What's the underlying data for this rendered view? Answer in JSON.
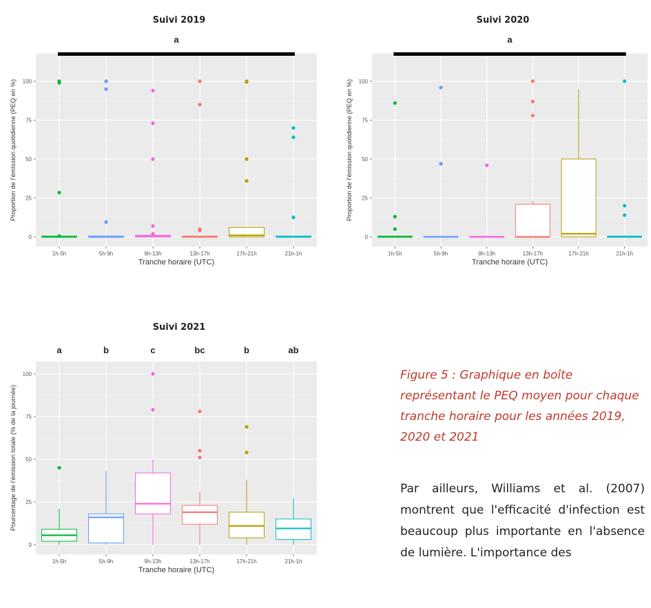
{
  "caption": "Figure 5 : Graphique en boîte représentant le PEQ moyen pour chaque tranche horaire pour les années 2019, 2020 et 2021",
  "body_text": "Par ailleurs, Williams et al. (2007) montrent que l'efficacité d'infection est beaucoup plus importante en l'absence de lumière. L'importance des",
  "chart_data": [
    {
      "type": "box",
      "title": "Suivi 2019",
      "xlabel": "Tranche horaire (UTC)",
      "ylabel": "Proportion de l'émission quotidienne (PEQ en %)",
      "ylim": [
        0,
        100
      ],
      "yticks": [
        0,
        25,
        50,
        75,
        100
      ],
      "categories": [
        "1h-5h",
        "5h-9h",
        "9h-13h",
        "13h-17h",
        "17h-21h",
        "21h-1h"
      ],
      "colors": [
        "#00ba38",
        "#619cff",
        "#f564e3",
        "#f8766d",
        "#b79f00",
        "#00bfc4"
      ],
      "significance": {
        "type": "bar",
        "label": "a"
      },
      "boxes": [
        {
          "min": 0,
          "q1": 0,
          "median": 0,
          "q3": 0.5,
          "max": 0.5,
          "outliers": [
            100,
            99,
            28.5,
            0.5
          ]
        },
        {
          "min": 0,
          "q1": 0,
          "median": 0,
          "q3": 0.5,
          "max": 0.5,
          "outliers": [
            100,
            95,
            9.5
          ]
        },
        {
          "min": 0,
          "q1": 0,
          "median": 0.5,
          "q3": 1,
          "max": 1,
          "outliers": [
            94,
            73,
            50,
            7,
            2
          ]
        },
        {
          "min": 0,
          "q1": 0,
          "median": 0,
          "q3": 0.5,
          "max": 0.5,
          "outliers": [
            100,
            85,
            5,
            4
          ]
        },
        {
          "min": 0,
          "q1": 0,
          "median": 1,
          "q3": 6,
          "max": 6,
          "outliers": [
            100,
            99.5,
            50,
            36
          ]
        },
        {
          "min": 0,
          "q1": 0,
          "median": 0,
          "q3": 0.5,
          "max": 0.5,
          "outliers": [
            70,
            64,
            12.5
          ]
        }
      ]
    },
    {
      "type": "box",
      "title": "Suivi 2020",
      "xlabel": "Tranche horaire (UTC)",
      "ylabel": "Proportion de l'émission quotidienne (PEQ en %)",
      "ylim": [
        0,
        100
      ],
      "yticks": [
        0,
        25,
        50,
        75,
        100
      ],
      "categories": [
        "1h-5h",
        "5h-9h",
        "9h-13h",
        "13h-17h",
        "17h-21h",
        "21h-1h"
      ],
      "colors": [
        "#00ba38",
        "#619cff",
        "#f564e3",
        "#f8766d",
        "#b79f00",
        "#00bfc4"
      ],
      "significance": {
        "type": "bar",
        "label": "a"
      },
      "boxes": [
        {
          "min": 0,
          "q1": 0,
          "median": 0,
          "q3": 0.5,
          "max": 0.5,
          "outliers": [
            86,
            13,
            5
          ]
        },
        {
          "min": 0,
          "q1": 0,
          "median": 0,
          "q3": 0.3,
          "max": 0.3,
          "outliers": [
            96,
            47
          ]
        },
        {
          "min": 0,
          "q1": 0,
          "median": 0,
          "q3": 0.3,
          "max": 0.3,
          "outliers": [
            46
          ]
        },
        {
          "min": 0,
          "q1": 0,
          "median": 0,
          "q3": 21,
          "max": 23,
          "outliers": [
            100,
            87,
            78
          ]
        },
        {
          "min": 0,
          "q1": 0,
          "median": 2,
          "q3": 50,
          "max": 95,
          "outliers": []
        },
        {
          "min": 0,
          "q1": 0,
          "median": 0,
          "q3": 0.5,
          "max": 0.5,
          "outliers": [
            100,
            20,
            14
          ]
        }
      ]
    },
    {
      "type": "box",
      "title": "Suivi 2021",
      "xlabel": "Tranche horaire (UTC)",
      "ylabel": "Pourcentage de l'émission totale (% de la journée)",
      "ylim": [
        0,
        100
      ],
      "yticks": [
        0,
        25,
        50,
        75,
        100
      ],
      "categories": [
        "1h-5h",
        "5h-9h",
        "9h-13h",
        "13h-17h",
        "17h-21h",
        "21h-1h"
      ],
      "colors": [
        "#00ba38",
        "#619cff",
        "#f564e3",
        "#f8766d",
        "#b79f00",
        "#00bfc4"
      ],
      "significance": {
        "type": "letters",
        "labels": [
          "a",
          "b",
          "c",
          "bc",
          "b",
          "ab"
        ]
      },
      "boxes": [
        {
          "min": 0,
          "q1": 2,
          "median": 5.5,
          "q3": 9,
          "max": 21,
          "outliers": [
            45
          ]
        },
        {
          "min": 0,
          "q1": 1,
          "median": 16,
          "q3": 18,
          "max": 43,
          "outliers": []
        },
        {
          "min": 0,
          "q1": 18,
          "median": 24,
          "q3": 42,
          "max": 50,
          "outliers": [
            100,
            79
          ]
        },
        {
          "min": 0,
          "q1": 12,
          "median": 19,
          "q3": 23,
          "max": 31,
          "outliers": [
            78,
            55,
            51
          ]
        },
        {
          "min": 0,
          "q1": 4,
          "median": 11,
          "q3": 19,
          "max": 38,
          "outliers": [
            69,
            54
          ]
        },
        {
          "min": 0,
          "q1": 3,
          "median": 9.5,
          "q3": 15,
          "max": 27,
          "outliers": []
        }
      ]
    }
  ]
}
